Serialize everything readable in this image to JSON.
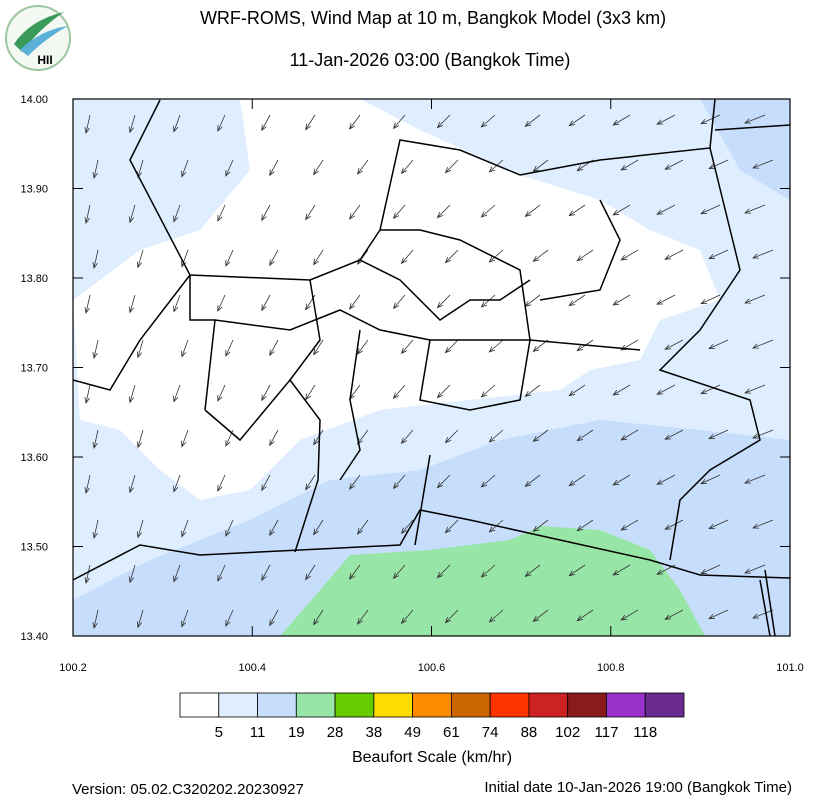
{
  "logo": {
    "text": "HII"
  },
  "header": {
    "title": "WRF-ROMS, Wind Map at 10 m, Bangkok Model (3x3 km)",
    "subtitle": "11-Jan-2026 03:00 (Bangkok Time)"
  },
  "map": {
    "xlim": [
      100.2,
      101.0
    ],
    "ylim": [
      13.4,
      14.0
    ],
    "xticks": [
      100.2,
      100.4,
      100.6,
      100.8,
      {
        "value": 101.0,
        "label": "101.0"
      }
    ],
    "yticks": [
      {
        "value": 14.0,
        "label": "14.00"
      },
      {
        "value": 13.9,
        "label": "13.90"
      },
      {
        "value": 13.8,
        "label": "13.80"
      },
      {
        "value": 13.7,
        "label": "13.70"
      },
      {
        "value": 13.6,
        "label": "13.60"
      },
      {
        "value": 13.5,
        "label": "13.50"
      },
      {
        "value": 13.4,
        "label": "13.40"
      }
    ]
  },
  "colorbar": {
    "title": "Beaufort Scale (km/hr)",
    "colors": [
      "#ffffff",
      "#dfeeff",
      "#c6ddfb",
      "#98e6a7",
      "#66cc00",
      "#ffdd00",
      "#ff8c00",
      "#cc6600",
      "#ff3300",
      "#cc2222",
      "#8b1a1a",
      "#9933cc",
      "#6a2c91"
    ],
    "labels": [
      5,
      11,
      19,
      28,
      38,
      49,
      61,
      74,
      88,
      102,
      117,
      118
    ]
  },
  "footer": {
    "version": "Version: 05.02.C320202.20230927",
    "initial": "Initial date 10-Jan-2026 19:00 (Bangkok Time)"
  }
}
